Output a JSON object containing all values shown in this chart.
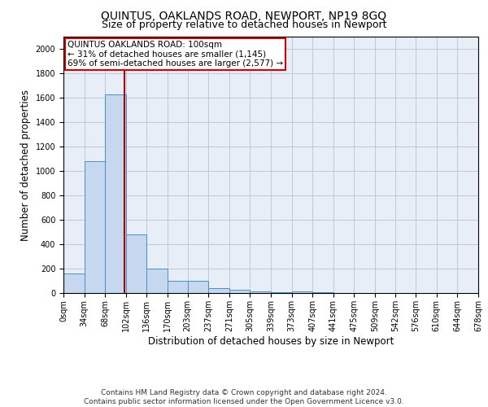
{
  "title": "QUINTUS, OAKLANDS ROAD, NEWPORT, NP19 8GQ",
  "subtitle": "Size of property relative to detached houses in Newport",
  "xlabel": "Distribution of detached houses by size in Newport",
  "ylabel": "Number of detached properties",
  "bin_edges": [
    0,
    34,
    68,
    102,
    136,
    170,
    203,
    237,
    271,
    305,
    339,
    373,
    407,
    441,
    475,
    509,
    542,
    576,
    610,
    644,
    678
  ],
  "bar_heights": [
    160,
    1080,
    1630,
    480,
    200,
    100,
    100,
    40,
    25,
    15,
    10,
    15,
    5,
    3,
    3,
    2,
    2,
    1,
    1,
    1
  ],
  "bar_color": "#c5d8f0",
  "bar_edge_color": "#4a90c4",
  "grid_color": "#c0c8d8",
  "bg_color": "#e8eef8",
  "vline_x": 100,
  "vline_color": "#aa0000",
  "annotation_title": "QUINTUS OAKLANDS ROAD: 100sqm",
  "annotation_line1": "← 31% of detached houses are smaller (1,145)",
  "annotation_line2": "69% of semi-detached houses are larger (2,577) →",
  "annotation_box_color": "#ffffff",
  "annotation_box_edge_color": "#cc0000",
  "ylim": [
    0,
    2100
  ],
  "yticks": [
    0,
    200,
    400,
    600,
    800,
    1000,
    1200,
    1400,
    1600,
    1800,
    2000
  ],
  "footer_line1": "Contains HM Land Registry data © Crown copyright and database right 2024.",
  "footer_line2": "Contains public sector information licensed under the Open Government Licence v3.0.",
  "title_fontsize": 10,
  "subtitle_fontsize": 9,
  "tick_label_fontsize": 7,
  "ylabel_fontsize": 8.5,
  "xlabel_fontsize": 8.5,
  "footer_fontsize": 6.5,
  "annot_fontsize": 7.5
}
